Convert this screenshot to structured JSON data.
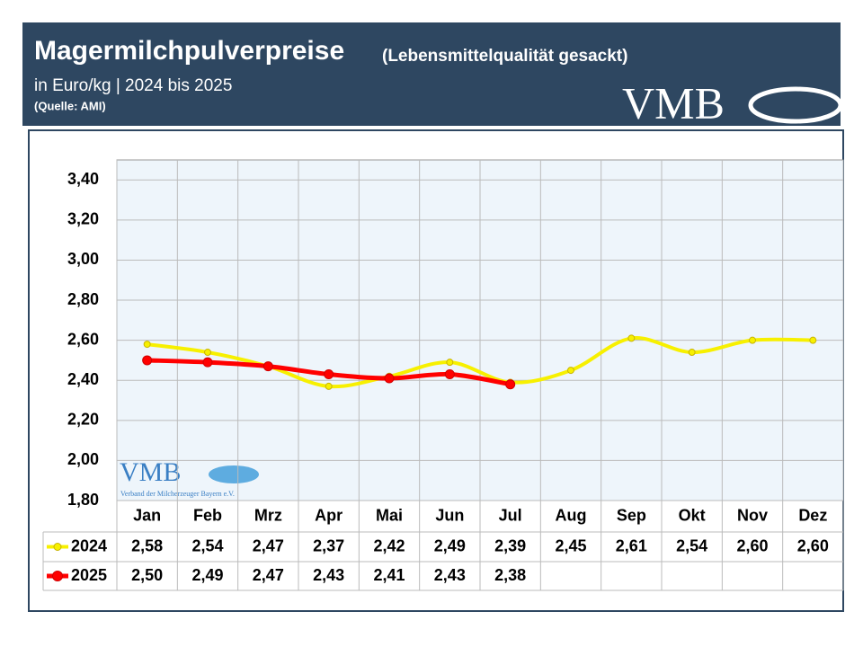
{
  "chart_data": {
    "type": "line",
    "title": "Magermilchpulverpreise",
    "title_note": "(Lebensmittelqualität gesackt)",
    "subtitle": "in Euro/kg | 2024 bis 2025",
    "source": "(Quelle: AMI)",
    "logo": "VMB",
    "logo_caption": "Verband der Milcherzeuger Bayern e.V.",
    "categories": [
      "Jan",
      "Feb",
      "Mrz",
      "Apr",
      "Mai",
      "Jun",
      "Jul",
      "Aug",
      "Sep",
      "Okt",
      "Nov",
      "Dez"
    ],
    "series": [
      {
        "name": "2024",
        "color": "#f7f000",
        "values": [
          2.58,
          2.54,
          2.47,
          2.37,
          2.42,
          2.49,
          2.39,
          2.45,
          2.61,
          2.54,
          2.6,
          2.6
        ],
        "value_labels": [
          "2,58",
          "2,54",
          "2,47",
          "2,37",
          "2,42",
          "2,49",
          "2,39",
          "2,45",
          "2,61",
          "2,54",
          "2,60",
          "2,60"
        ]
      },
      {
        "name": "2025",
        "color": "#ff0000",
        "values": [
          2.5,
          2.49,
          2.47,
          2.43,
          2.41,
          2.43,
          2.38,
          null,
          null,
          null,
          null,
          null
        ],
        "value_labels": [
          "2,50",
          "2,49",
          "2,47",
          "2,43",
          "2,41",
          "2,43",
          "2,38",
          null,
          null,
          null,
          null,
          null
        ]
      }
    ],
    "ylim": [
      1.8,
      3.5
    ],
    "yticks": [
      {
        "value": 1.8,
        "label": "1,80"
      },
      {
        "value": 2.0,
        "label": "2,00"
      },
      {
        "value": 2.2,
        "label": "2,20"
      },
      {
        "value": 2.4,
        "label": "2,40"
      },
      {
        "value": 2.6,
        "label": "2,60"
      },
      {
        "value": 2.8,
        "label": "2,80"
      },
      {
        "value": 3.0,
        "label": "3,00"
      },
      {
        "value": 3.2,
        "label": "3,20"
      },
      {
        "value": 3.4,
        "label": "3,40"
      }
    ],
    "grid": true
  }
}
